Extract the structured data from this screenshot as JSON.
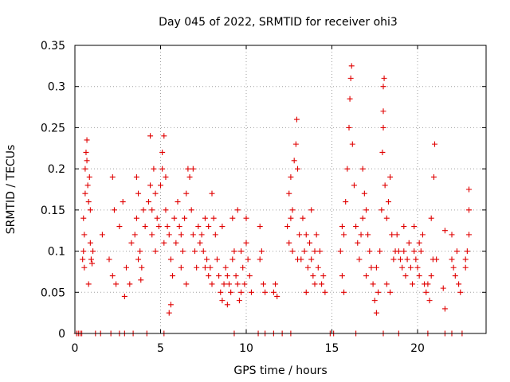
{
  "chart_data": {
    "type": "scatter",
    "title": "Day 045 of 2022, SRMTID for receiver ohi3",
    "xlabel": "GPS time / hours",
    "ylabel": "SRMTID / TECUs",
    "xlim": [
      0,
      24
    ],
    "ylim": [
      0,
      0.35
    ],
    "x_ticks": [
      0,
      5,
      10,
      15,
      20
    ],
    "x_tick_labels": [
      "0",
      "5",
      "10",
      "15",
      "20"
    ],
    "y_ticks": [
      0,
      0.05,
      0.1,
      0.15,
      0.2,
      0.25,
      0.3,
      0.35
    ],
    "y_tick_labels": [
      "0",
      "0.05",
      "0.1",
      "0.15",
      "0.2",
      "0.25",
      "0.3",
      "0.35"
    ],
    "grid": true,
    "legend": "none",
    "marker": "plus",
    "color": "#e00000",
    "series": [
      {
        "name": "SRMTID",
        "points": [
          [
            0.1,
            0
          ],
          [
            0.2,
            0
          ],
          [
            0.3,
            0
          ],
          [
            0.4,
            0
          ],
          [
            1.2,
            0
          ],
          [
            1.5,
            0
          ],
          [
            2.1,
            0
          ],
          [
            2.6,
            0
          ],
          [
            2.9,
            0
          ],
          [
            3.4,
            0
          ],
          [
            4.2,
            0
          ],
          [
            5.2,
            0
          ],
          [
            9.3,
            0
          ],
          [
            10.7,
            0
          ],
          [
            11.1,
            0
          ],
          [
            11.6,
            0
          ],
          [
            12.1,
            0
          ],
          [
            12.6,
            0
          ],
          [
            14.9,
            0
          ],
          [
            15.1,
            0
          ],
          [
            16.4,
            0
          ],
          [
            18.0,
            0
          ],
          [
            18.9,
            0
          ],
          [
            20.6,
            0
          ],
          [
            21.6,
            0
          ],
          [
            22.0,
            0
          ],
          [
            22.6,
            0
          ],
          [
            0.45,
            0.09
          ],
          [
            0.5,
            0.1
          ],
          [
            0.5,
            0.14
          ],
          [
            0.55,
            0.12
          ],
          [
            0.6,
            0.17
          ],
          [
            0.6,
            0.2
          ],
          [
            0.65,
            0.22
          ],
          [
            0.7,
            0.235
          ],
          [
            0.7,
            0.21
          ],
          [
            0.75,
            0.18
          ],
          [
            0.8,
            0.16
          ],
          [
            0.85,
            0.19
          ],
          [
            0.9,
            0.15
          ],
          [
            0.9,
            0.11
          ],
          [
            0.95,
            0.09
          ],
          [
            1.0,
            0.085
          ],
          [
            1.05,
            0.1
          ],
          [
            0.8,
            0.06
          ],
          [
            0.55,
            0.08
          ],
          [
            1.6,
            0.12
          ],
          [
            2.0,
            0.09
          ],
          [
            2.2,
            0.19
          ],
          [
            2.3,
            0.15
          ],
          [
            2.2,
            0.07
          ],
          [
            2.4,
            0.06
          ],
          [
            2.6,
            0.13
          ],
          [
            2.8,
            0.16
          ],
          [
            2.9,
            0.045
          ],
          [
            3.0,
            0.08
          ],
          [
            3.3,
            0.11
          ],
          [
            3.2,
            0.06
          ],
          [
            3.5,
            0.12
          ],
          [
            3.6,
            0.14
          ],
          [
            3.7,
            0.17
          ],
          [
            3.8,
            0.1
          ],
          [
            3.9,
            0.08
          ],
          [
            4.0,
            0.15
          ],
          [
            4.1,
            0.13
          ],
          [
            3.6,
            0.19
          ],
          [
            3.7,
            0.09
          ],
          [
            3.85,
            0.065
          ],
          [
            4.3,
            0.16
          ],
          [
            4.4,
            0.18
          ],
          [
            4.5,
            0.15
          ],
          [
            4.6,
            0.2
          ],
          [
            4.7,
            0.17
          ],
          [
            4.8,
            0.14
          ],
          [
            4.9,
            0.13
          ],
          [
            4.4,
            0.24
          ],
          [
            4.5,
            0.12
          ],
          [
            4.7,
            0.1
          ],
          [
            5.0,
            0.18
          ],
          [
            5.1,
            0.2
          ],
          [
            5.1,
            0.22
          ],
          [
            5.2,
            0.24
          ],
          [
            5.3,
            0.19
          ],
          [
            5.3,
            0.15
          ],
          [
            5.4,
            0.13
          ],
          [
            5.5,
            0.12
          ],
          [
            5.6,
            0.09
          ],
          [
            5.7,
            0.07
          ],
          [
            5.6,
            0.035
          ],
          [
            5.5,
            0.025
          ],
          [
            5.2,
            0.11
          ],
          [
            5.8,
            0.14
          ],
          [
            5.9,
            0.11
          ],
          [
            6.0,
            0.16
          ],
          [
            6.1,
            0.13
          ],
          [
            6.2,
            0.12
          ],
          [
            6.3,
            0.1
          ],
          [
            6.4,
            0.14
          ],
          [
            6.5,
            0.17
          ],
          [
            6.6,
            0.2
          ],
          [
            6.7,
            0.19
          ],
          [
            6.8,
            0.15
          ],
          [
            6.9,
            0.12
          ],
          [
            7.0,
            0.1
          ],
          [
            7.1,
            0.08
          ],
          [
            6.2,
            0.08
          ],
          [
            6.5,
            0.06
          ],
          [
            6.9,
            0.2
          ],
          [
            7.2,
            0.13
          ],
          [
            7.3,
            0.11
          ],
          [
            7.4,
            0.12
          ],
          [
            7.5,
            0.1
          ],
          [
            7.6,
            0.08
          ],
          [
            7.7,
            0.09
          ],
          [
            7.8,
            0.07
          ],
          [
            7.9,
            0.08
          ],
          [
            8.0,
            0.06
          ],
          [
            8.0,
            0.17
          ],
          [
            8.1,
            0.14
          ],
          [
            8.2,
            0.12
          ],
          [
            8.3,
            0.09
          ],
          [
            7.6,
            0.14
          ],
          [
            7.8,
            0.13
          ],
          [
            8.4,
            0.07
          ],
          [
            8.5,
            0.05
          ],
          [
            8.6,
            0.04
          ],
          [
            8.7,
            0.06
          ],
          [
            8.8,
            0.08
          ],
          [
            8.9,
            0.07
          ],
          [
            9.0,
            0.06
          ],
          [
            9.1,
            0.05
          ],
          [
            9.2,
            0.09
          ],
          [
            9.3,
            0.1
          ],
          [
            9.4,
            0.07
          ],
          [
            9.5,
            0.06
          ],
          [
            9.6,
            0.04
          ],
          [
            9.7,
            0.05
          ],
          [
            9.8,
            0.08
          ],
          [
            9.9,
            0.06
          ],
          [
            10.0,
            0.11
          ],
          [
            10.1,
            0.09
          ],
          [
            10.2,
            0.07
          ],
          [
            10.3,
            0.05
          ],
          [
            8.6,
            0.13
          ],
          [
            9.2,
            0.14
          ],
          [
            9.5,
            0.15
          ],
          [
            10.0,
            0.14
          ],
          [
            8.9,
            0.035
          ],
          [
            9.7,
            0.1
          ],
          [
            10.8,
            0.09
          ],
          [
            10.9,
            0.1
          ],
          [
            11.0,
            0.06
          ],
          [
            11.1,
            0.05
          ],
          [
            10.8,
            0.13
          ],
          [
            11.6,
            0.05
          ],
          [
            11.7,
            0.06
          ],
          [
            11.8,
            0.045
          ],
          [
            12.4,
            0.13
          ],
          [
            12.5,
            0.17
          ],
          [
            12.6,
            0.19
          ],
          [
            12.7,
            0.15
          ],
          [
            12.8,
            0.21
          ],
          [
            12.9,
            0.23
          ],
          [
            12.95,
            0.26
          ],
          [
            13.0,
            0.2
          ],
          [
            13.1,
            0.12
          ],
          [
            13.2,
            0.09
          ],
          [
            12.5,
            0.11
          ],
          [
            12.7,
            0.1
          ],
          [
            13.0,
            0.09
          ],
          [
            12.6,
            0.14
          ],
          [
            13.3,
            0.14
          ],
          [
            13.4,
            0.1
          ],
          [
            13.5,
            0.12
          ],
          [
            13.6,
            0.08
          ],
          [
            13.7,
            0.11
          ],
          [
            13.8,
            0.09
          ],
          [
            13.9,
            0.07
          ],
          [
            14.0,
            0.1
          ],
          [
            14.1,
            0.12
          ],
          [
            14.2,
            0.08
          ],
          [
            14.3,
            0.1
          ],
          [
            14.4,
            0.06
          ],
          [
            14.5,
            0.07
          ],
          [
            14.6,
            0.05
          ],
          [
            13.5,
            0.05
          ],
          [
            13.8,
            0.15
          ],
          [
            14.0,
            0.06
          ],
          [
            15.5,
            0.1
          ],
          [
            15.6,
            0.13
          ],
          [
            15.7,
            0.12
          ],
          [
            15.8,
            0.16
          ],
          [
            15.9,
            0.2
          ],
          [
            16.0,
            0.25
          ],
          [
            16.05,
            0.285
          ],
          [
            16.1,
            0.31
          ],
          [
            16.15,
            0.325
          ],
          [
            16.2,
            0.23
          ],
          [
            16.3,
            0.18
          ],
          [
            16.4,
            0.13
          ],
          [
            16.5,
            0.11
          ],
          [
            16.6,
            0.09
          ],
          [
            16.7,
            0.12
          ],
          [
            16.8,
            0.14
          ],
          [
            16.9,
            0.17
          ],
          [
            17.0,
            0.15
          ],
          [
            17.1,
            0.12
          ],
          [
            17.2,
            0.1
          ],
          [
            17.3,
            0.08
          ],
          [
            15.6,
            0.07
          ],
          [
            15.7,
            0.05
          ],
          [
            16.8,
            0.2
          ],
          [
            17.0,
            0.07
          ],
          [
            17.4,
            0.06
          ],
          [
            17.5,
            0.04
          ],
          [
            17.6,
            0.025
          ],
          [
            17.7,
            0.05
          ],
          [
            17.8,
            0.1
          ],
          [
            17.9,
            0.15
          ],
          [
            17.95,
            0.22
          ],
          [
            18.0,
            0.25
          ],
          [
            18.0,
            0.27
          ],
          [
            18.0,
            0.3
          ],
          [
            18.05,
            0.31
          ],
          [
            18.1,
            0.18
          ],
          [
            18.2,
            0.14
          ],
          [
            18.3,
            0.16
          ],
          [
            18.4,
            0.19
          ],
          [
            18.5,
            0.12
          ],
          [
            18.6,
            0.09
          ],
          [
            18.7,
            0.1
          ],
          [
            17.6,
            0.08
          ],
          [
            18.2,
            0.06
          ],
          [
            18.4,
            0.05
          ],
          [
            18.8,
            0.12
          ],
          [
            18.9,
            0.1
          ],
          [
            19.0,
            0.09
          ],
          [
            19.1,
            0.08
          ],
          [
            19.2,
            0.1
          ],
          [
            19.3,
            0.07
          ],
          [
            19.4,
            0.09
          ],
          [
            19.5,
            0.11
          ],
          [
            19.6,
            0.08
          ],
          [
            19.7,
            0.06
          ],
          [
            19.8,
            0.1
          ],
          [
            19.9,
            0.09
          ],
          [
            20.0,
            0.08
          ],
          [
            20.1,
            0.07
          ],
          [
            20.2,
            0.1
          ],
          [
            20.3,
            0.12
          ],
          [
            20.4,
            0.06
          ],
          [
            20.5,
            0.05
          ],
          [
            19.2,
            0.13
          ],
          [
            19.8,
            0.13
          ],
          [
            20.1,
            0.11
          ],
          [
            20.6,
            0.06
          ],
          [
            20.7,
            0.04
          ],
          [
            20.8,
            0.07
          ],
          [
            20.9,
            0.09
          ],
          [
            20.95,
            0.19
          ],
          [
            21.0,
            0.23
          ],
          [
            20.8,
            0.14
          ],
          [
            21.1,
            0.09
          ],
          [
            21.5,
            0.055
          ],
          [
            21.6,
            0.03
          ],
          [
            21.6,
            0.125
          ],
          [
            22.0,
            0.09
          ],
          [
            22.1,
            0.08
          ],
          [
            22.2,
            0.07
          ],
          [
            22.3,
            0.1
          ],
          [
            22.4,
            0.06
          ],
          [
            22.5,
            0.05
          ],
          [
            22.0,
            0.12
          ],
          [
            22.8,
            0.08
          ],
          [
            22.9,
            0.1
          ],
          [
            23.0,
            0.12
          ],
          [
            23.0,
            0.15
          ],
          [
            23.0,
            0.175
          ],
          [
            22.8,
            0.09
          ]
        ]
      }
    ]
  }
}
